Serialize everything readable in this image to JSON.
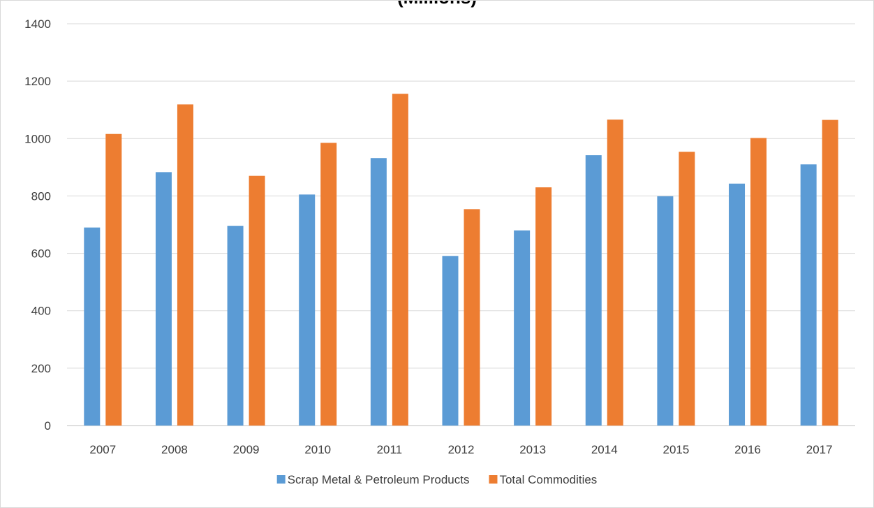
{
  "chart_data": {
    "type": "bar",
    "title": "(Millions)",
    "categories": [
      "2007",
      "2008",
      "2009",
      "2010",
      "2011",
      "2012",
      "2013",
      "2014",
      "2015",
      "2016",
      "2017"
    ],
    "series": [
      {
        "name": "Scrap Metal & Petroleum Products",
        "color": "#5b9bd5",
        "values": [
          690,
          883,
          696,
          805,
          932,
          591,
          680,
          942,
          799,
          843,
          910
        ]
      },
      {
        "name": "Total Commodities",
        "color": "#ed7d31",
        "values": [
          1016,
          1119,
          870,
          985,
          1156,
          754,
          830,
          1066,
          954,
          1002,
          1065
        ]
      }
    ],
    "xlabel": "",
    "ylabel": "",
    "ylim": [
      0,
      1400
    ],
    "yticks": [
      0,
      200,
      400,
      600,
      800,
      1000,
      1200,
      1400
    ],
    "grid": true,
    "legend_position": "bottom"
  }
}
